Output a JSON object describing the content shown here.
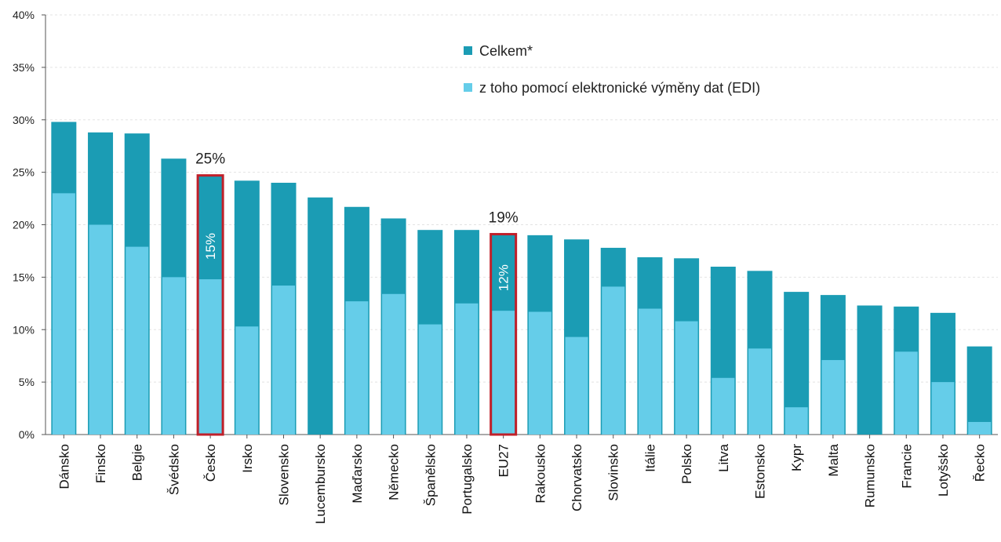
{
  "chart_data": {
    "type": "bar",
    "categories": [
      "Dánsko",
      "Finsko",
      "Belgie",
      "Švédsko",
      "Česko",
      "Irsko",
      "Slovensko",
      "Lucembursko",
      "Maďarsko",
      "Německo",
      "Španělsko",
      "Portugalsko",
      "EU27",
      "Rakousko",
      "Chorvatsko",
      "Slovinsko",
      "Itálie",
      "Polsko",
      "Litva",
      "Estonsko",
      "Kypr",
      "Malta",
      "Rumunsko",
      "Francie",
      "Lotyšsko",
      "Řecko"
    ],
    "series": [
      {
        "name": "Celkem*",
        "color": "#1b9cb4",
        "values": [
          29.8,
          28.8,
          28.7,
          26.3,
          24.7,
          24.2,
          24.0,
          22.6,
          21.7,
          20.6,
          19.5,
          19.5,
          19.1,
          19.0,
          18.6,
          17.8,
          16.9,
          16.8,
          16.0,
          15.6,
          13.6,
          13.3,
          12.3,
          12.2,
          11.6,
          8.4
        ]
      },
      {
        "name": "z toho pomocí elektronické výměny dat (EDI)",
        "color": "#65cde9",
        "values": [
          23.0,
          20.0,
          17.9,
          15.0,
          14.8,
          10.3,
          14.2,
          null,
          12.7,
          13.4,
          10.5,
          12.5,
          11.8,
          11.7,
          9.3,
          14.1,
          12.0,
          10.8,
          5.4,
          8.2,
          2.6,
          7.1,
          null,
          7.9,
          5.0,
          1.2
        ]
      }
    ],
    "ylim": [
      0,
      40
    ],
    "yticks": [
      0,
      5,
      10,
      15,
      20,
      25,
      30,
      35,
      40
    ],
    "yticklabels": [
      "0%",
      "5%",
      "10%",
      "15%",
      "20%",
      "25%",
      "30%",
      "35%",
      "40%"
    ],
    "grid": true,
    "legend_position": "top-right",
    "highlighted": [
      {
        "category": "Česko",
        "total_label": "25%",
        "edi_label": "15%",
        "frame_color": "#c0202a"
      },
      {
        "category": "EU27",
        "total_label": "19%",
        "edi_label": "12%",
        "frame_color": "#c0202a"
      }
    ]
  }
}
